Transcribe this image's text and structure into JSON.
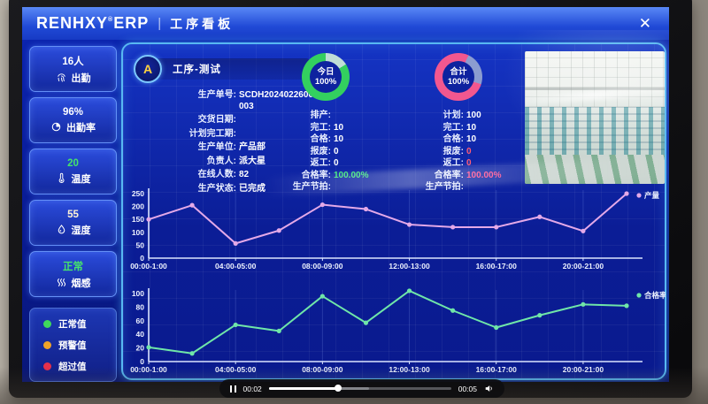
{
  "window": {
    "brand": "RENHXY",
    "reg": "®",
    "brand2": "ERP",
    "divider": "|",
    "page_title": "工序看板",
    "close_icon": "✕"
  },
  "sidebar": {
    "cards": [
      {
        "name": "attendance",
        "value": "16人",
        "label": "出勤",
        "icon": "fingerprint-icon",
        "value_color": "#ffffff"
      },
      {
        "name": "attendance-rate",
        "value": "96%",
        "label": "出勤率",
        "icon": "pie-chart-icon",
        "value_color": "#ffffff"
      },
      {
        "name": "temperature",
        "value": "20",
        "label": "温度",
        "icon": "thermometer-icon",
        "value_color": "#46e36c"
      },
      {
        "name": "humidity",
        "value": "55",
        "label": "湿度",
        "icon": "droplet-icon",
        "value_color": "#fff3d6"
      },
      {
        "name": "smoke-sensor",
        "value": "正常",
        "label": "烟感",
        "icon": "smoke-waves-icon",
        "value_color": "#46e36c"
      }
    ],
    "legend": [
      {
        "label": "正常值",
        "color": "#3fd95c"
      },
      {
        "label": "预警值",
        "color": "#f0a428"
      },
      {
        "label": "超过值",
        "color": "#e6304a"
      }
    ]
  },
  "info": {
    "process_title": "工序-测试",
    "logo_letter": "A",
    "fields": [
      {
        "label": "生产单号",
        "value": "SCDH2024022600003"
      },
      {
        "label": "交货日期",
        "value": ""
      },
      {
        "label": "计划完工期",
        "value": ""
      },
      {
        "label": "生产单位",
        "value": "产品部"
      },
      {
        "label": "负责人",
        "value": "派大星"
      },
      {
        "label": "在线人数",
        "value": "82"
      },
      {
        "label": "生产状态",
        "value": "已完成"
      }
    ]
  },
  "today": {
    "title": "今日",
    "percent": "100%",
    "ring_color": "#33cf5f",
    "ring_alt_color": "#bfded6",
    "rows": [
      {
        "label": "排产",
        "value": ""
      },
      {
        "label": "完工",
        "value": "10"
      },
      {
        "label": "合格",
        "value": "10"
      },
      {
        "label": "报废",
        "value": "0"
      },
      {
        "label": "返工",
        "value": "0"
      },
      {
        "label": "合格率",
        "value": "100.00%",
        "color": "#3fe87a"
      },
      {
        "label": "生产节拍",
        "value": ""
      }
    ]
  },
  "total": {
    "title": "合计",
    "percent": "100%",
    "ring_color": "#f2578f",
    "ring_alt_color": "#8b9cd0",
    "rows": [
      {
        "label": "计划",
        "value": "100"
      },
      {
        "label": "完工",
        "value": "10"
      },
      {
        "label": "合格",
        "value": "10"
      },
      {
        "label": "报废",
        "value": "0",
        "color": "#ff5a74"
      },
      {
        "label": "返工",
        "value": "0",
        "color": "#ff5a74"
      },
      {
        "label": "合格率",
        "value": "100.00%",
        "color": "#ff4d8f"
      },
      {
        "label": "生产节拍",
        "value": ""
      }
    ]
  },
  "chart_data": [
    {
      "type": "line",
      "name": "产量",
      "color": "#e4a9e8",
      "x_labels": [
        "00:00-1:00",
        "04:00-05:00",
        "08:00-09:00",
        "12:00-13:00",
        "16:00-17:00",
        "20:00-21:00"
      ],
      "values": [
        150,
        205,
        57,
        107,
        207,
        190,
        130,
        120,
        120,
        160,
        105,
        250
      ],
      "ylim": [
        0,
        250
      ],
      "yticks": [
        0,
        50,
        100,
        150,
        200,
        250
      ],
      "grid": "vertical-faint",
      "legend_position": "top-right"
    },
    {
      "type": "line",
      "name": "合格率",
      "color": "#6fe6a8",
      "x_labels": [
        "00:00-1:00",
        "04:00-05:00",
        "08:00-09:00",
        "12:00-13:00",
        "16:00-17:00",
        "20:00-21:00"
      ],
      "values": [
        21,
        12,
        54,
        45,
        96,
        57,
        104,
        75,
        50,
        68,
        84,
        82
      ],
      "ylim": [
        0,
        100
      ],
      "yticks": [
        0,
        20,
        40,
        60,
        80,
        100
      ],
      "grid": "vertical-faint",
      "legend_position": "top-right"
    }
  ],
  "video_player": {
    "current_time": "00:02",
    "duration": "00:05",
    "progress_percent": 38,
    "buffered_percent": 55
  }
}
